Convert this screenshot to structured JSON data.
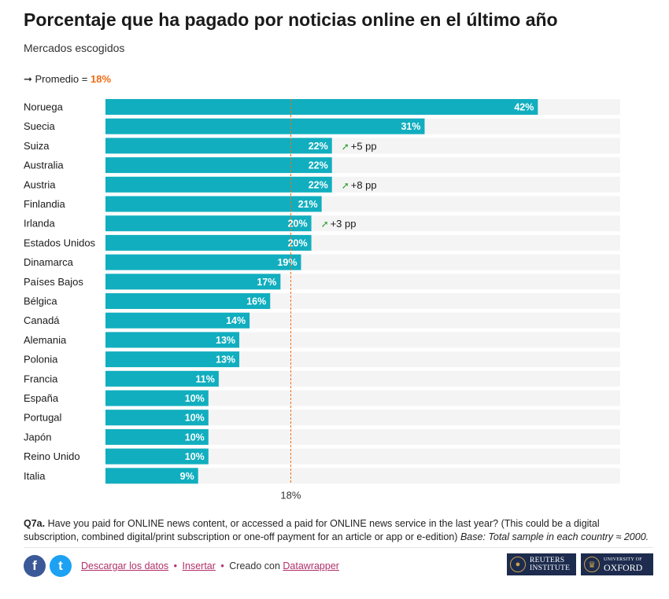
{
  "header": {
    "title": "Porcentaje que ha pagado por noticias online en el último año",
    "subtitle": "Mercados escogidos",
    "avg_prefix": "➞ Promedio =",
    "avg_value": "18%"
  },
  "chart_data": {
    "type": "bar",
    "orientation": "horizontal",
    "categories": [
      "Noruega",
      "Suecia",
      "Suiza",
      "Australia",
      "Austria",
      "Finlandia",
      "Irlanda",
      "Estados Unidos",
      "Dinamarca",
      "Países Bajos",
      "Bélgica",
      "Canadá",
      "Alemania",
      "Polonia",
      "Francia",
      "España",
      "Portugal",
      "Japón",
      "Reino Unido",
      "Italia"
    ],
    "values": [
      42,
      31,
      22,
      22,
      22,
      21,
      20,
      20,
      19,
      17,
      16,
      14,
      13,
      13,
      11,
      10,
      10,
      10,
      10,
      9
    ],
    "value_labels": [
      "42%",
      "31%",
      "22%",
      "22%",
      "22%",
      "21%",
      "20%",
      "20%",
      "19%",
      "17%",
      "16%",
      "14%",
      "13%",
      "13%",
      "11%",
      "10%",
      "10%",
      "10%",
      "10%",
      "9%"
    ],
    "changes": [
      "",
      "",
      "+5 pp",
      "",
      "+8 pp",
      "",
      "+3 pp",
      "",
      "",
      "",
      "",
      "",
      "",
      "",
      "",
      "",
      "",
      "",
      "",
      ""
    ],
    "change_arrow": "➚",
    "xlim": [
      0,
      50
    ],
    "average": 18,
    "average_label": "18%",
    "bar_color": "#11aebf",
    "track_color": "#f4f4f4",
    "average_color": "#f06b13",
    "change_color": "#2ca02c"
  },
  "notes": {
    "question": "Q7a.",
    "text": "Have you paid for ONLINE news content, or accessed a paid for ONLINE news service in the last year? (This could be a digital subscription, combined digital/print subscription or one-off payment for an article or app or e-edition)",
    "base": "Base: Total sample in each country ≈ 2000."
  },
  "footer": {
    "facebook_glyph": "f",
    "twitter_glyph": "t",
    "download_label": "Descargar los datos",
    "embed_label": "Insertar",
    "separator": "•",
    "created_with": "Creado con",
    "datawrapper_label": "Datawrapper",
    "reuters_line1": "REUTERS",
    "reuters_line2": "INSTITUTE",
    "oxford_line1": "UNIVERSITY OF",
    "oxford_line2": "OXFORD"
  }
}
